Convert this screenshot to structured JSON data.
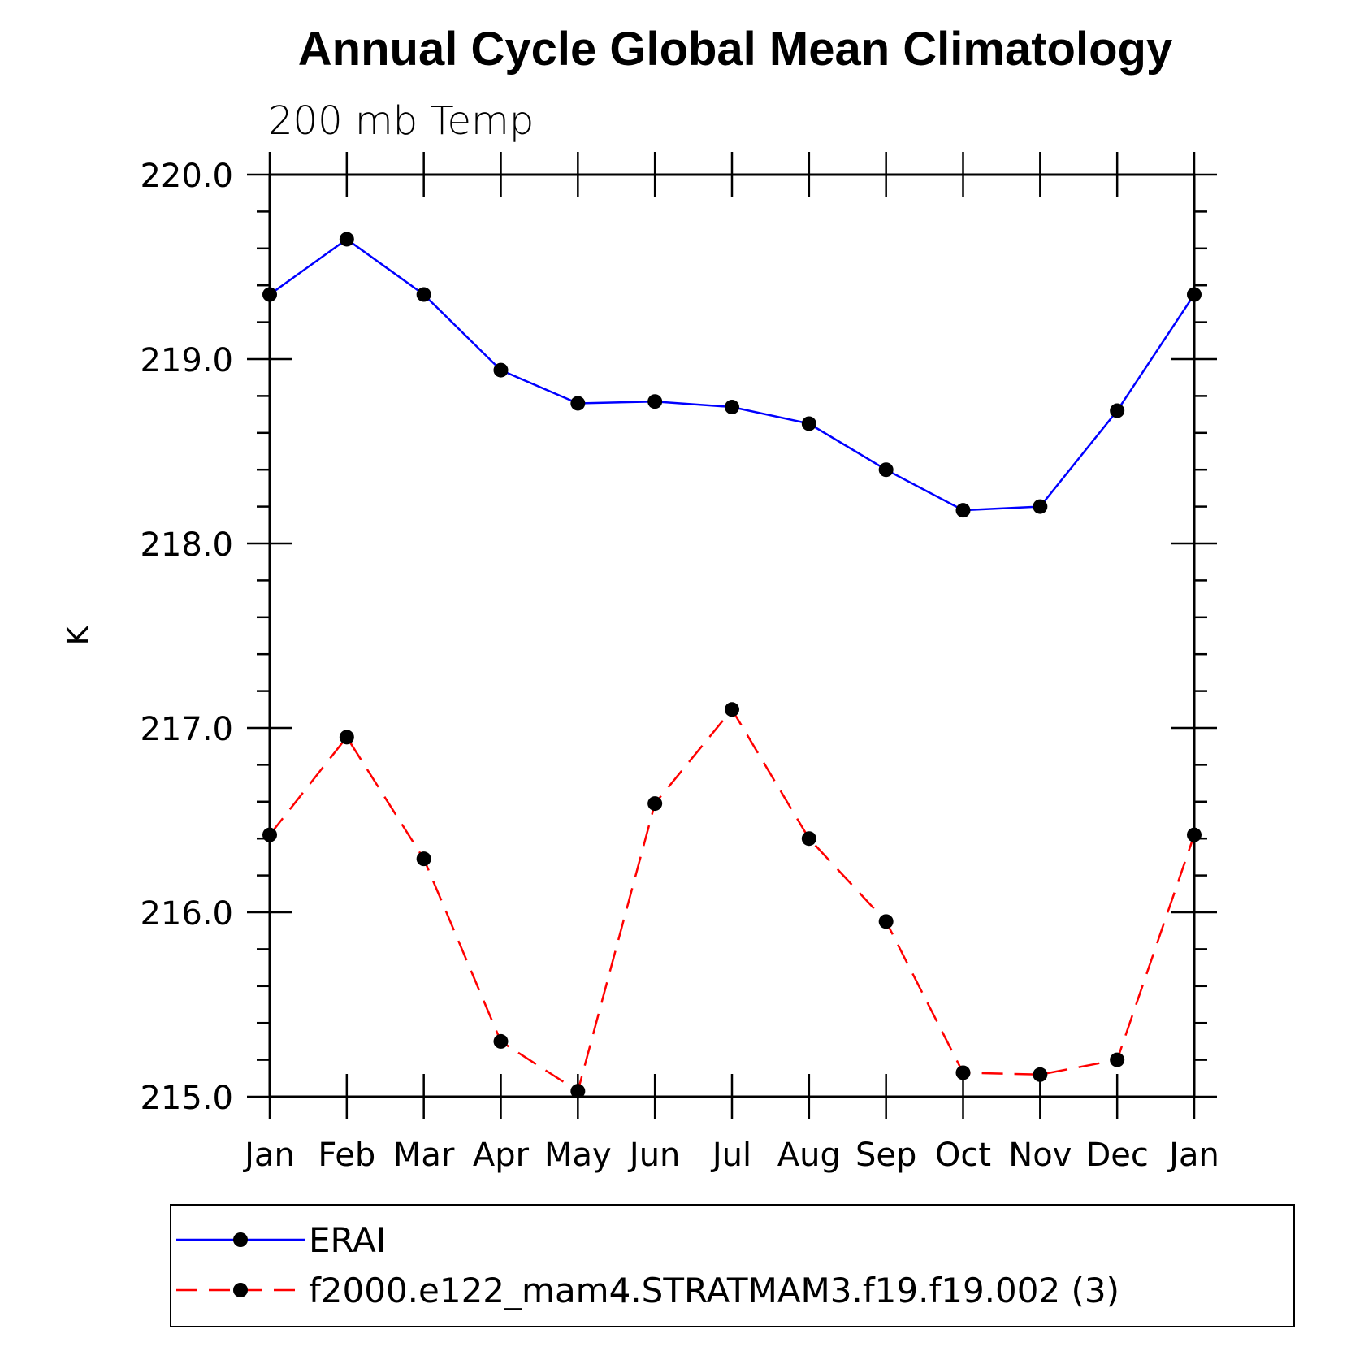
{
  "chart_data": {
    "type": "line",
    "title": "Annual Cycle Global Mean Climatology",
    "subtitle": "200 mb Temp",
    "xlabel": "",
    "ylabel": "K",
    "categories": [
      "Jan",
      "Feb",
      "Mar",
      "Apr",
      "May",
      "Jun",
      "Jul",
      "Aug",
      "Sep",
      "Oct",
      "Nov",
      "Dec",
      "Jan"
    ],
    "ylim": [
      215.0,
      220.0
    ],
    "yticks": [
      "215.0",
      "216.0",
      "217.0",
      "218.0",
      "219.0",
      "220.0"
    ],
    "ytick_values": [
      215.0,
      216.0,
      217.0,
      218.0,
      219.0,
      220.0
    ],
    "grid": false,
    "legend_placement": "bottom",
    "series": [
      {
        "name": "ERAI",
        "color": "#0000ff",
        "dash": "solid",
        "marker": "filled-circle",
        "values": [
          219.35,
          219.65,
          219.35,
          218.94,
          218.76,
          218.77,
          218.74,
          218.65,
          218.4,
          218.18,
          218.2,
          218.72,
          219.35
        ]
      },
      {
        "name": "f2000.e122_mam4.STRATMAM3.f19.f19.002 (3)",
        "color": "#ff0000",
        "dash": "dashed",
        "marker": "filled-circle",
        "values": [
          216.42,
          216.95,
          216.29,
          215.3,
          215.03,
          216.59,
          217.1,
          216.4,
          215.95,
          215.13,
          215.12,
          215.2,
          216.42
        ]
      }
    ]
  }
}
